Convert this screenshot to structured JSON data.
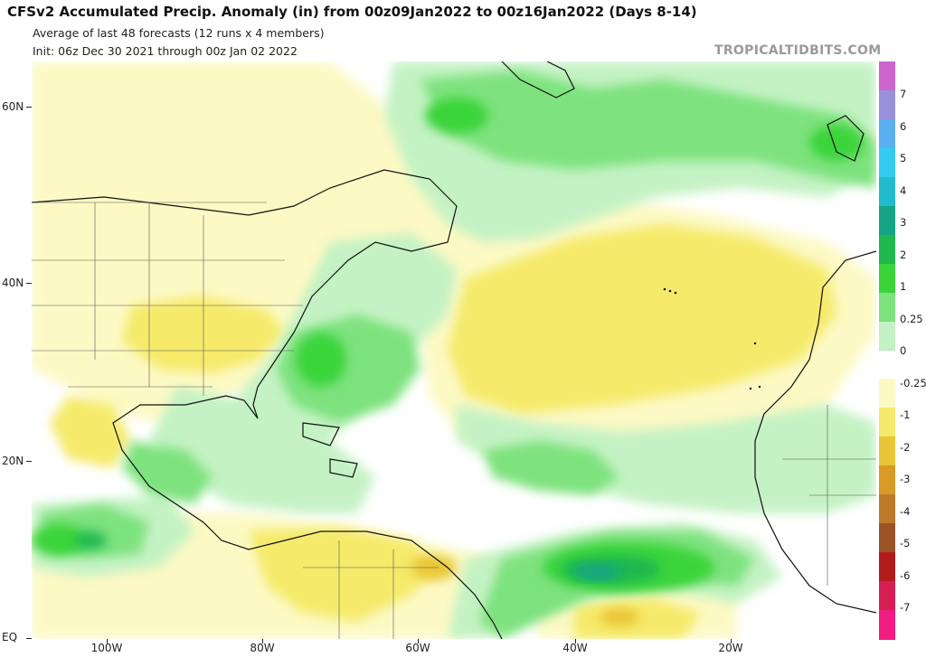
{
  "header": {
    "title": "CFSv2 Accumulated Precip. Anomaly (in) from 00z09Jan2022 to 00z16Jan2022 (Days 8-14)",
    "subtitle": "Average of last 48 forecasts (12 runs x 4 members)",
    "init": "Init: 06z Dec 30 2021 through 00z Jan 02 2022",
    "brand": "TROPICALTIDBITS.COM"
  },
  "map": {
    "region": "North Atlantic basin",
    "lat_labels": [
      "60N",
      "40N",
      "20N",
      "EQ"
    ],
    "lon_labels": [
      "100W",
      "80W",
      "60W",
      "40W",
      "20W"
    ]
  },
  "colorbar": {
    "labels": [
      "7",
      "6",
      "5",
      "4",
      "3",
      "2",
      "1",
      "0.25",
      "0",
      "-0.25",
      "-1",
      "-2",
      "-3",
      "-4",
      "-5",
      "-6",
      "-7"
    ],
    "colors": {
      "p8": "#cc66cc",
      "p7": "#9a8fd9",
      "p6": "#5ab0f0",
      "p5": "#33ccf0",
      "p4": "#22bbcc",
      "p3": "#15a585",
      "p2": "#1fb84f",
      "p1": "#3ad43a",
      "p025": "#7ee27e",
      "p0": "#c4f2c4",
      "n0": "#ffffff",
      "n025": "#fcf9c4",
      "n1": "#f5ea6b",
      "n2": "#e9c636",
      "n3": "#d79a24",
      "n4": "#bd7a2a",
      "n5": "#9b5426",
      "n6": "#b21c1c",
      "n7": "#d71f55",
      "n8": "#f21c83"
    }
  }
}
